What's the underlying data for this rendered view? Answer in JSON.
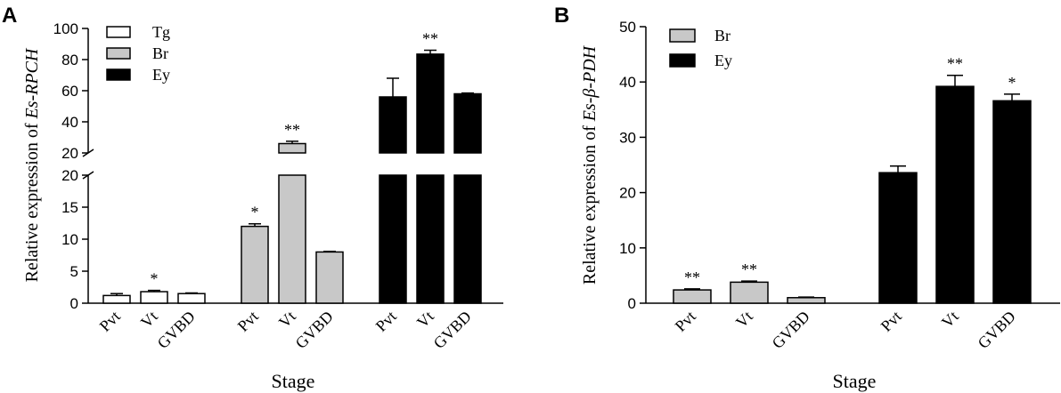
{
  "chart_data": [
    {
      "panel_label": "A",
      "type": "bar",
      "ylabel_prefix": "Relative expression of ",
      "ylabel_gene": "Es-RPCH",
      "xlabel": "Stage",
      "y_axis_break": true,
      "lower_ylim": [
        0,
        20
      ],
      "upper_ylim": [
        20,
        100
      ],
      "lower_yticks": [
        "0",
        "5",
        "10",
        "15",
        "20"
      ],
      "upper_yticks": [
        "20",
        "40",
        "60",
        "80",
        "100"
      ],
      "legend_placement": "top-left",
      "groups": [
        {
          "name": "Tg",
          "color": "#ffffff",
          "bars": [
            {
              "stage": "Pvt",
              "value": 1.2,
              "error": 0.3,
              "sig": ""
            },
            {
              "stage": "Vt",
              "value": 1.8,
              "error": 0.2,
              "sig": "*"
            },
            {
              "stage": "GVBD",
              "value": 1.5,
              "error": 0.1,
              "sig": ""
            }
          ]
        },
        {
          "name": "Br",
          "color": "#c8c8c8",
          "bars": [
            {
              "stage": "Pvt",
              "value": 12,
              "error": 0.4,
              "sig": "*"
            },
            {
              "stage": "Vt",
              "value": 26,
              "error": 1.5,
              "sig": "**"
            },
            {
              "stage": "GVBD",
              "value": 8,
              "error": 0.1,
              "sig": ""
            }
          ]
        },
        {
          "name": "Ey",
          "color": "#000000",
          "bars": [
            {
              "stage": "Pvt",
              "value": 56,
              "error": 12,
              "sig": ""
            },
            {
              "stage": "Vt",
              "value": 83.5,
              "error": 2.5,
              "sig": "**"
            },
            {
              "stage": "GVBD",
              "value": 58,
              "error": 0.5,
              "sig": ""
            }
          ]
        }
      ]
    },
    {
      "panel_label": "B",
      "type": "bar",
      "ylabel_prefix": "Relative expression of ",
      "ylabel_gene": "Es-β-PDH",
      "xlabel": "Stage",
      "ylim": [
        0,
        50
      ],
      "yticks": [
        "0",
        "10",
        "20",
        "30",
        "40",
        "50"
      ],
      "legend_placement": "top-left",
      "groups": [
        {
          "name": "Br",
          "color": "#c8c8c8",
          "bars": [
            {
              "stage": "Pvt",
              "value": 2.4,
              "error": 0.2,
              "sig": "**"
            },
            {
              "stage": "Vt",
              "value": 3.8,
              "error": 0.2,
              "sig": "**"
            },
            {
              "stage": "GVBD",
              "value": 1.0,
              "error": 0.1,
              "sig": ""
            }
          ]
        },
        {
          "name": "Ey",
          "color": "#000000",
          "bars": [
            {
              "stage": "Pvt",
              "value": 23.6,
              "error": 1.2,
              "sig": ""
            },
            {
              "stage": "Vt",
              "value": 39.2,
              "error": 2.0,
              "sig": "**"
            },
            {
              "stage": "GVBD",
              "value": 36.6,
              "error": 1.2,
              "sig": "*"
            }
          ]
        }
      ]
    }
  ]
}
